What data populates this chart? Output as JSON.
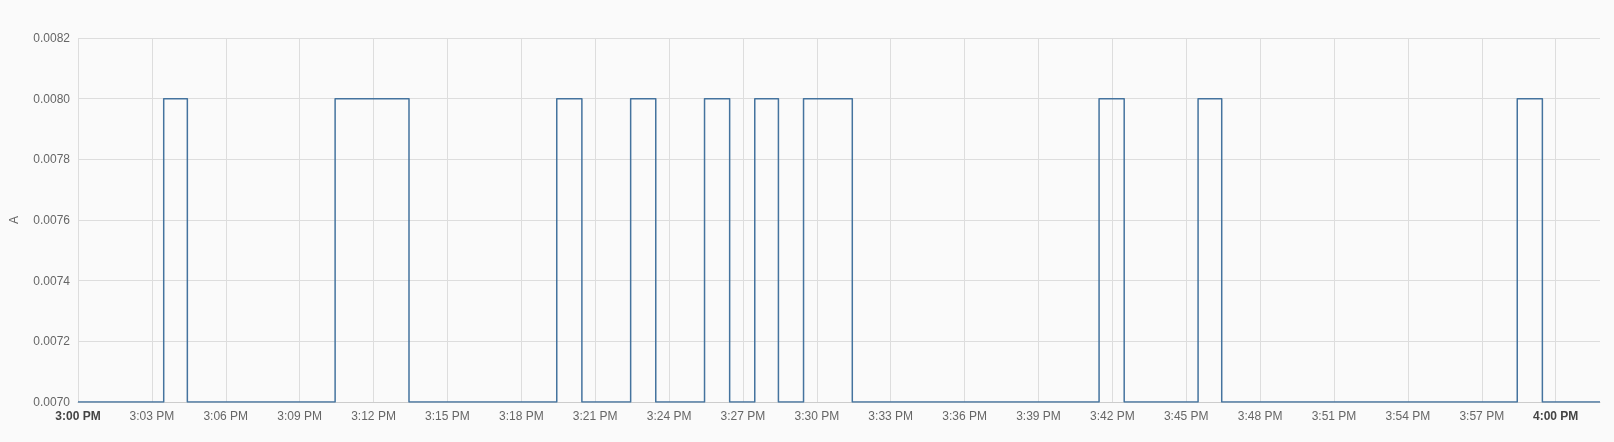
{
  "chart_data": {
    "type": "step",
    "ylabel": "A",
    "x": [
      15,
      15.058,
      15.074,
      15.174,
      15.224,
      15.324,
      15.341,
      15.374,
      15.391,
      15.424,
      15.441,
      15.458,
      15.474,
      15.491,
      15.524,
      15.691,
      15.708,
      15.758,
      15.774,
      15.974,
      15.991,
      16.03
    ],
    "series": [
      {
        "color": "#44739e",
        "values": [
          0.007,
          0.008,
          0.007,
          0.008,
          0.007,
          0.008,
          0.007,
          0.008,
          0.007,
          0.008,
          0.007,
          0.008,
          0.007,
          0.008,
          0.007,
          0.008,
          0.007,
          0.008,
          0.007,
          0.008,
          0.007,
          0.007
        ]
      }
    ],
    "xlim": [
      15,
      16.03
    ],
    "xticks": [
      {
        "value": 15,
        "label": "3:00 PM"
      },
      {
        "value": 15.05,
        "label": "3:03 PM"
      },
      {
        "value": 15.1,
        "label": "3:06 PM"
      },
      {
        "value": 15.15,
        "label": "3:09 PM"
      },
      {
        "value": 15.2,
        "label": "3:12 PM"
      },
      {
        "value": 15.25,
        "label": "3:15 PM"
      },
      {
        "value": 15.3,
        "label": "3:18 PM"
      },
      {
        "value": 15.35,
        "label": "3:21 PM"
      },
      {
        "value": 15.4,
        "label": "3:24 PM"
      },
      {
        "value": 15.45,
        "label": "3:27 PM"
      },
      {
        "value": 15.5,
        "label": "3:30 PM"
      },
      {
        "value": 15.55,
        "label": "3:33 PM"
      },
      {
        "value": 15.6,
        "label": "3:36 PM"
      },
      {
        "value": 15.65,
        "label": "3:39 PM"
      },
      {
        "value": 15.7,
        "label": "3:42 PM"
      },
      {
        "value": 15.75,
        "label": "3:45 PM"
      },
      {
        "value": 15.8,
        "label": "3:48 PM"
      },
      {
        "value": 15.85,
        "label": "3:51 PM"
      },
      {
        "value": 15.9,
        "label": "3:54 PM"
      },
      {
        "value": 15.95,
        "label": "3:57 PM"
      },
      {
        "value": 16,
        "label": "4:00 PM"
      }
    ],
    "ylim": [
      0.007,
      0.0082
    ],
    "yticks": [
      {
        "value": 0.007,
        "label": "0.0070"
      },
      {
        "value": 0.0072,
        "label": "0.0072"
      },
      {
        "value": 0.0074,
        "label": "0.0074"
      },
      {
        "value": 0.0076,
        "label": "0.0076"
      },
      {
        "value": 0.0078,
        "label": "0.0078"
      },
      {
        "value": 0.008,
        "label": "0.0080"
      },
      {
        "value": 0.0082,
        "label": "0.0082"
      }
    ],
    "grid": true,
    "marker": "none"
  }
}
